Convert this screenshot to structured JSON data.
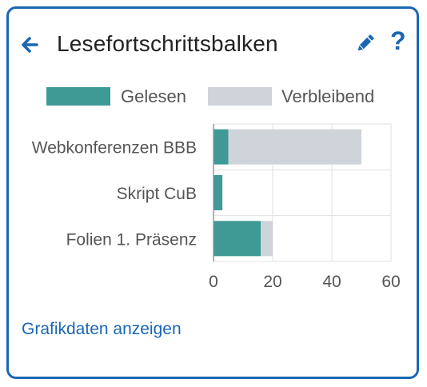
{
  "card": {
    "title": "Lesefortschrittsbalken",
    "back_icon": "arrow-left-icon",
    "edit_icon": "pencil-icon",
    "help_icon": "question-mark-icon",
    "help_label": "?",
    "show_data_link": "Grafikdaten anzeigen"
  },
  "colors": {
    "accent": "#1a66b3",
    "read": "#3f9a96",
    "remaining": "#cfd4db"
  },
  "chart_data": {
    "type": "bar",
    "orientation": "horizontal",
    "stacked": true,
    "categories": [
      "Webkonferenzen BBB",
      "Skript CuB",
      "Folien 1. Präsenz"
    ],
    "series": [
      {
        "name": "Gelesen",
        "values": [
          5,
          3,
          16
        ]
      },
      {
        "name": "Verbleibend",
        "values": [
          45,
          0,
          4
        ]
      }
    ],
    "xlim": [
      0,
      60
    ],
    "xticks": [
      0,
      20,
      40,
      60
    ],
    "grid": true,
    "legend": "top"
  }
}
